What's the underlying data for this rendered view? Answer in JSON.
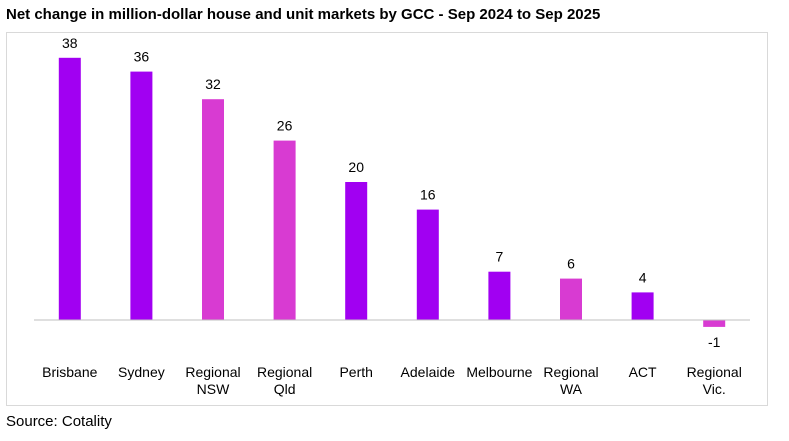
{
  "title": "Net change in million-dollar house and unit markets by GCC - Sep 2024 to Sep 2025",
  "source": "Source: Cotality",
  "colors": {
    "purple": "#a100f2",
    "magenta": "#d83bd2",
    "axis": "#bfbfbf",
    "frame": "#d9d9d9"
  },
  "chart_data": {
    "type": "bar",
    "title": "Net change in million-dollar house and unit markets by GCC - Sep 2024 to Sep 2025",
    "categories": [
      [
        "Brisbane"
      ],
      [
        "Sydney"
      ],
      [
        "Regional",
        "NSW"
      ],
      [
        "Regional",
        "Qld"
      ],
      [
        "Perth"
      ],
      [
        "Adelaide"
      ],
      [
        "Melbourne"
      ],
      [
        "Regional",
        "WA"
      ],
      [
        "ACT"
      ],
      [
        "Regional",
        "Vic."
      ]
    ],
    "values": [
      38,
      36,
      32,
      26,
      20,
      16,
      7,
      6,
      4,
      -1
    ],
    "bar_colors": [
      "purple",
      "purple",
      "magenta",
      "magenta",
      "purple",
      "purple",
      "purple",
      "magenta",
      "purple",
      "magenta"
    ],
    "data_labels": true,
    "grid": false,
    "legend": "none"
  }
}
